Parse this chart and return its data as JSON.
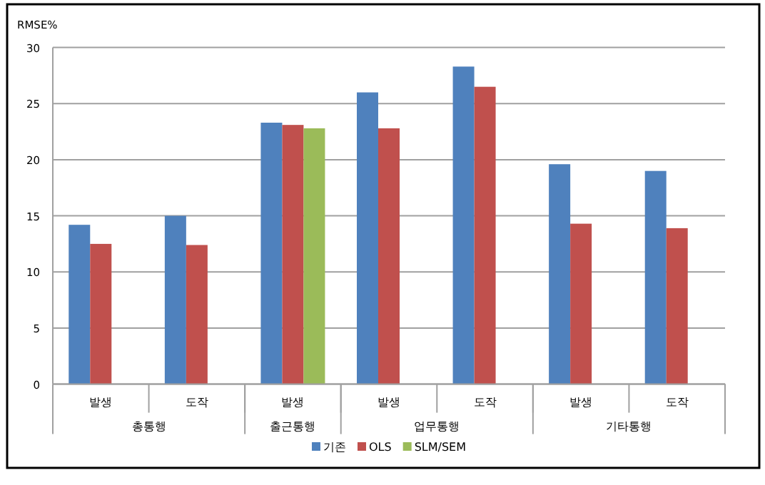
{
  "chart_data": {
    "type": "bar",
    "ylabel": "RMSE%",
    "categories": [
      "발생",
      "도작",
      "발생",
      "발생",
      "도작",
      "발생",
      "도작"
    ],
    "series": [
      {
        "name": "기존",
        "color": "#4f81bd",
        "values": [
          14.2,
          15.0,
          23.3,
          26.0,
          28.3,
          19.6,
          19.0
        ]
      },
      {
        "name": "OLS",
        "color": "#c0504d",
        "values": [
          12.5,
          12.4,
          23.1,
          22.8,
          26.5,
          14.3,
          13.9
        ]
      },
      {
        "name": "SLM/SEM",
        "color": "#9bbb59",
        "values": [
          null,
          null,
          22.8,
          null,
          null,
          null,
          null
        ]
      }
    ],
    "annotations": [
      "총통행",
      "출근통행",
      "업무통행",
      "기타통행"
    ],
    "ylim": [
      0,
      30
    ],
    "yticks": [
      0,
      5,
      10,
      15,
      20,
      25,
      30
    ],
    "grid": "y",
    "legend": "bottom"
  }
}
